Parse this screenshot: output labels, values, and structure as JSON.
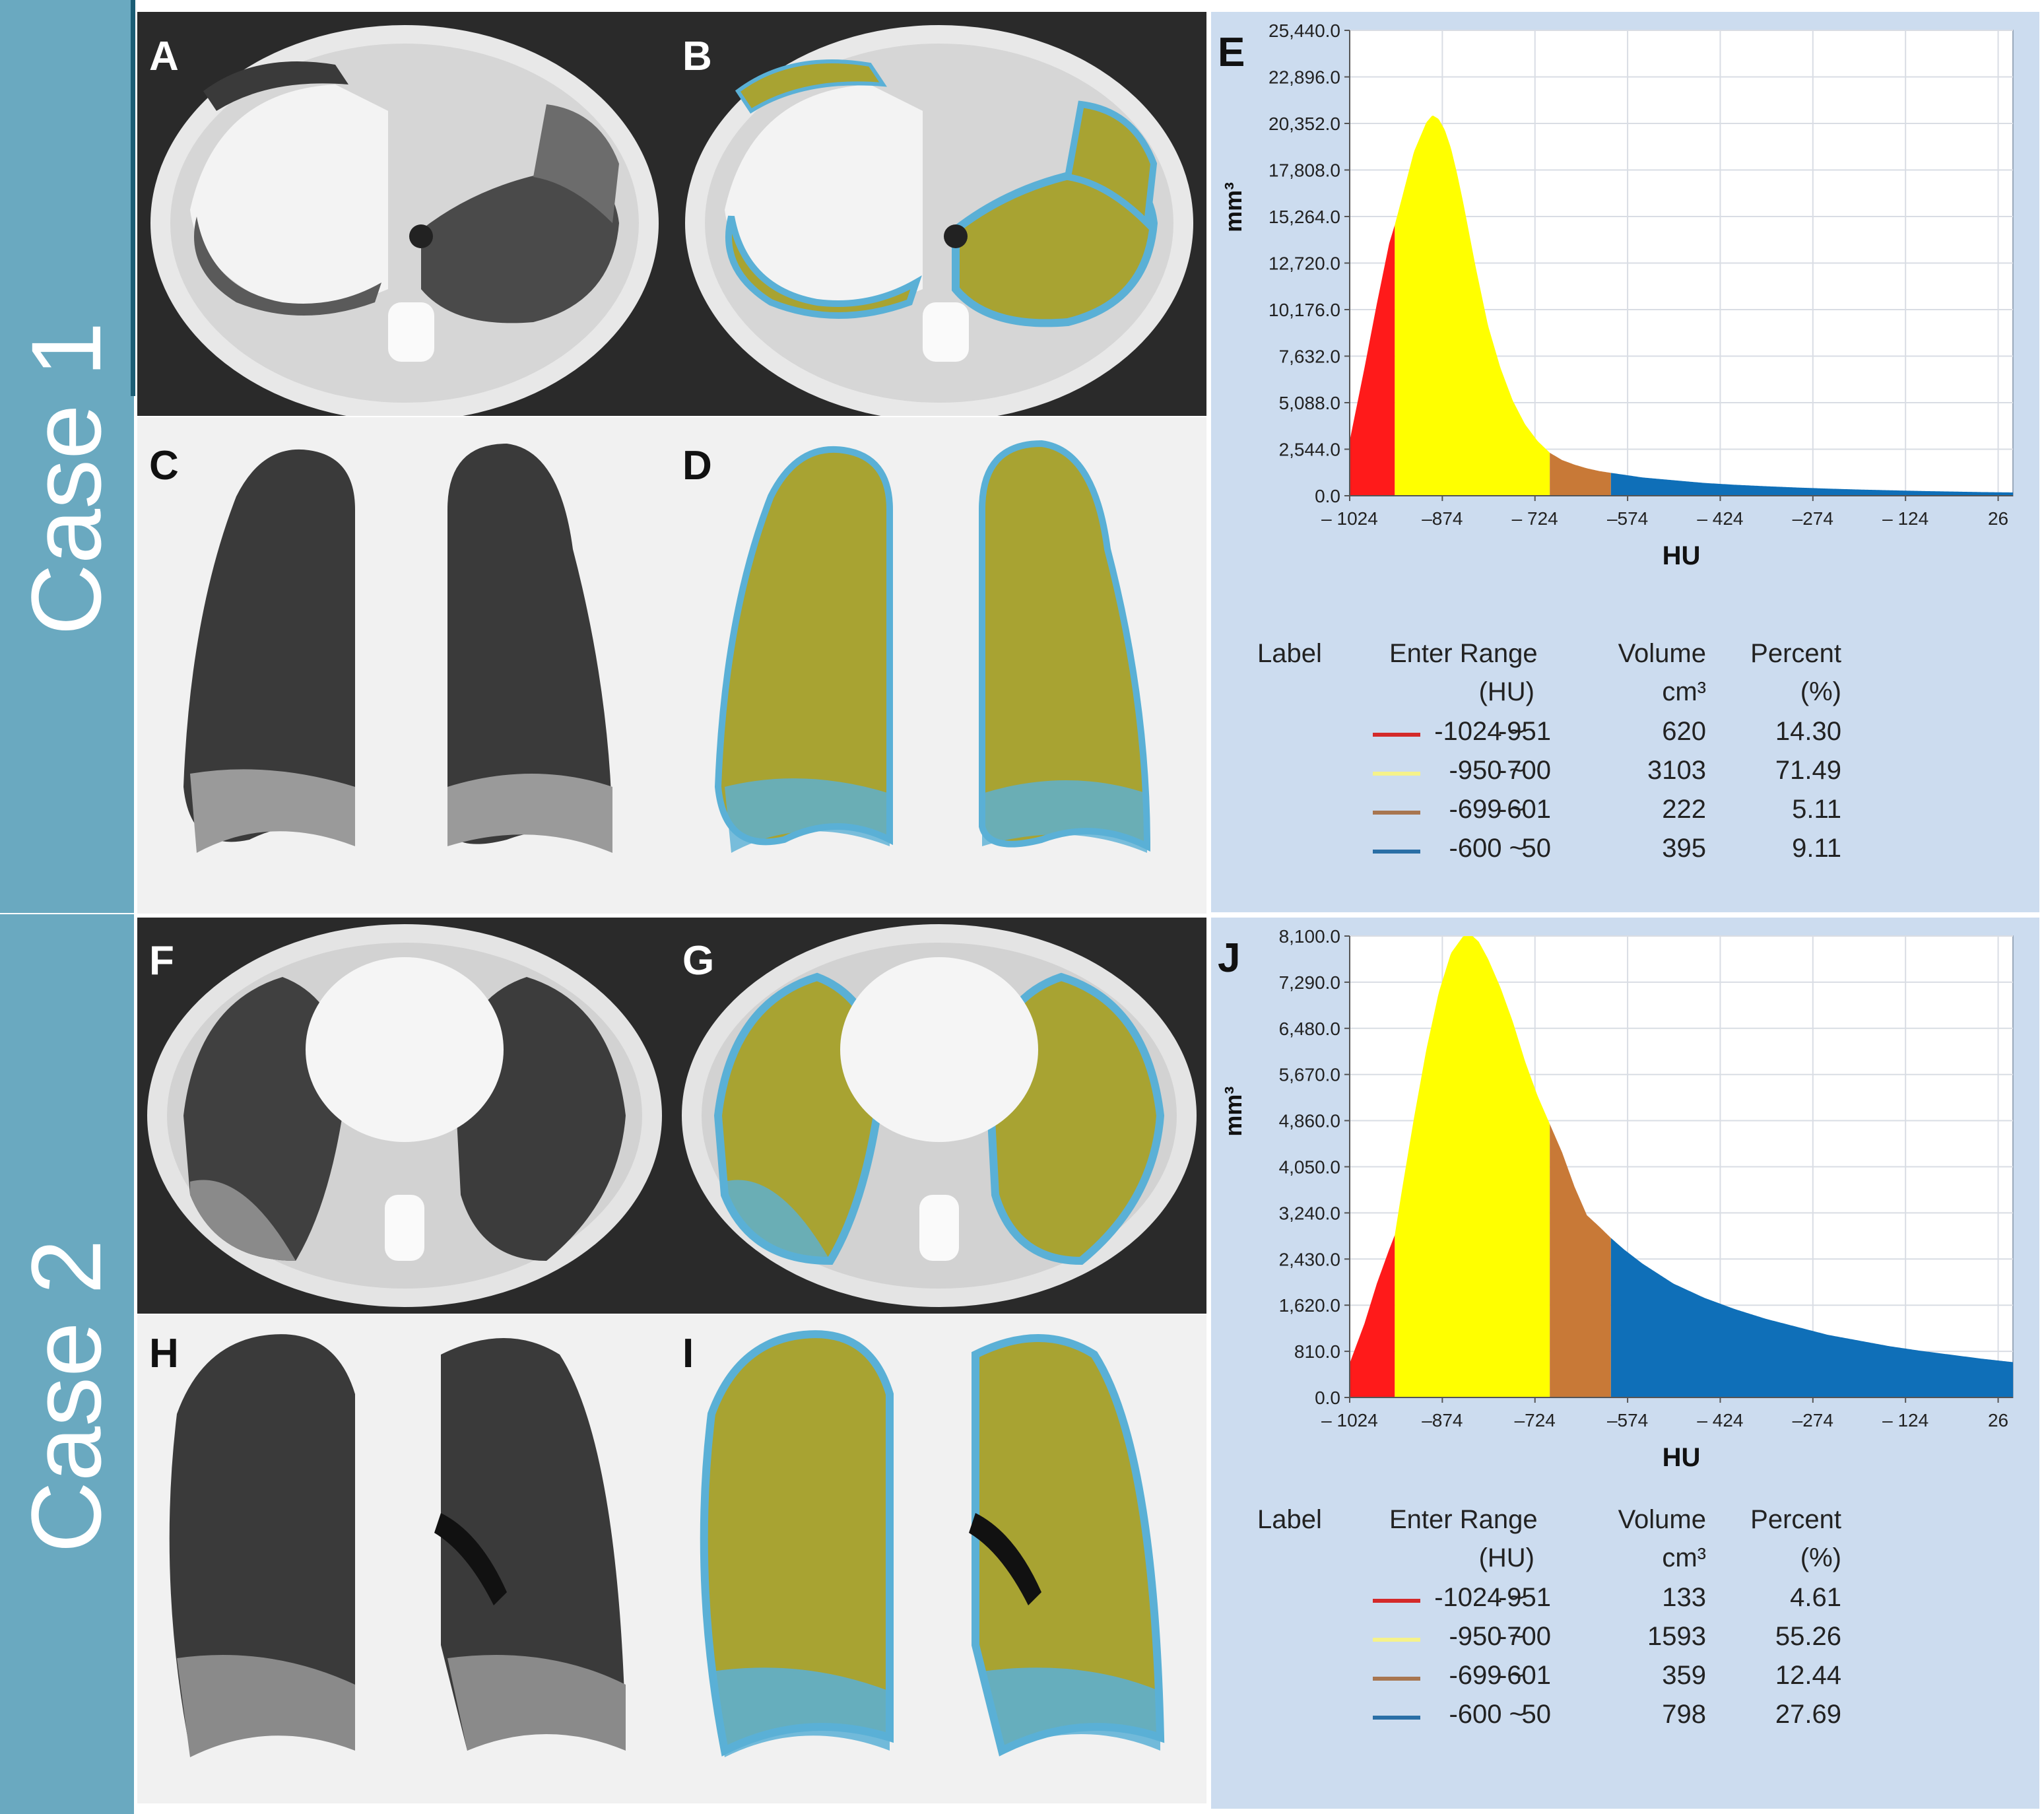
{
  "figure": {
    "case_labels": [
      "Case 1",
      "Case 2"
    ],
    "panel_letters": {
      "A": "A",
      "B": "B",
      "C": "C",
      "D": "D",
      "F": "F",
      "G": "G",
      "H": "H",
      "I": "I"
    }
  },
  "colors": {
    "band": "#6aa9c0",
    "red": "#ff1a1a",
    "yellow": "#ffff00",
    "brown": "#c87937",
    "blue": "#0f6fb8",
    "lung_overlay": "#a8a332",
    "overlay_blue": "#5ab0d6",
    "chart_bg": "#ffffff",
    "panel_bg": "#ccdcef"
  },
  "chart_data": [
    {
      "panel": "E",
      "type": "area",
      "title": "",
      "xlabel": "HU",
      "ylabel": "mm³",
      "xlim": [
        -1024,
        50
      ],
      "ylim": [
        0,
        25440
      ],
      "xticks": [
        -1024,
        -874,
        -724,
        -574,
        -424,
        -274,
        -124,
        26
      ],
      "xtick_labels": [
        "– 1024",
        "–874",
        "– 724",
        "–574",
        "– 424",
        "–274",
        "– 124",
        "26"
      ],
      "yticks": [
        0,
        2544,
        5088,
        7632,
        10176,
        12720,
        15264,
        17808,
        20352,
        22896,
        25440
      ],
      "ytick_labels": [
        "0.0",
        "2,544.0",
        "5,088.0",
        "7,632.0",
        "10,176.0",
        "12,720.0",
        "15,264.0",
        "17,808.0",
        "20,352.0",
        "22,896.0",
        "25,440.0"
      ],
      "curve": {
        "x": [
          -1024,
          -1000,
          -980,
          -960,
          -951,
          -940,
          -920,
          -900,
          -890,
          -880,
          -870,
          -860,
          -850,
          -840,
          -820,
          -800,
          -780,
          -760,
          -740,
          -720,
          -700,
          -680,
          -660,
          -640,
          -620,
          -601,
          -580,
          -550,
          -500,
          -450,
          -400,
          -350,
          -300,
          -250,
          -200,
          -150,
          -100,
          -50,
          0,
          50
        ],
        "y": [
          3000,
          7000,
          10500,
          13800,
          14800,
          16200,
          18800,
          20400,
          20800,
          20600,
          20000,
          19000,
          17600,
          16000,
          12500,
          9300,
          7000,
          5200,
          3900,
          3000,
          2350,
          1950,
          1700,
          1500,
          1350,
          1250,
          1150,
          1000,
          850,
          700,
          600,
          520,
          450,
          390,
          340,
          300,
          260,
          230,
          200,
          180
        ]
      },
      "ranges": [
        {
          "label": "-1024 ~ -951",
          "from": -1024,
          "to": -951,
          "color": "#ff1a1a"
        },
        {
          "label": "-950 ~ -700",
          "from": -951,
          "to": -700,
          "color": "#ffff00"
        },
        {
          "label": "-699 ~ -601",
          "from": -700,
          "to": -601,
          "color": "#c87937"
        },
        {
          "label": "-600 ~ 50",
          "from": -601,
          "to": 50,
          "color": "#0f6fb8"
        }
      ],
      "table": {
        "headers": {
          "label": "Label",
          "range": "Enter Range",
          "range_unit": "(HU)",
          "volume": "Volume",
          "volume_unit": "cm³",
          "percent": "Percent",
          "percent_unit": "(%)"
        },
        "rows": [
          {
            "r1": "-1024 ~",
            "r2": "-951",
            "volume": "620",
            "percent": "14.30",
            "color": "#d42a2a"
          },
          {
            "r1": "-950 ~",
            "r2": "-700",
            "volume": "3103",
            "percent": "71.49",
            "color": "#f5f28a"
          },
          {
            "r1": "-699 ~",
            "r2": "-601",
            "volume": "222",
            "percent": "5.11",
            "color": "#a87650"
          },
          {
            "r1": "-600 ~",
            "r2": "50",
            "volume": "395",
            "percent": "9.11",
            "color": "#2a6fa6"
          }
        ]
      }
    },
    {
      "panel": "J",
      "type": "area",
      "title": "",
      "xlabel": "HU",
      "ylabel": "mm³",
      "xlim": [
        -1024,
        50
      ],
      "ylim": [
        0,
        8100
      ],
      "xticks": [
        -1024,
        -874,
        -724,
        -574,
        -424,
        -274,
        -124,
        26
      ],
      "xtick_labels": [
        "– 1024",
        "–874",
        "–724",
        "–574",
        "– 424",
        "–274",
        "– 124",
        "26"
      ],
      "yticks": [
        0,
        810,
        1620,
        2430,
        3240,
        4050,
        4860,
        5670,
        6480,
        7290,
        8100
      ],
      "ytick_labels": [
        "0.0",
        "810.0",
        "1,620.0",
        "2,430.0",
        "3,240.0",
        "4,050.0",
        "4,860.0",
        "5,670.0",
        "6,480.0",
        "7,290.0",
        "8,100.0"
      ],
      "curve": {
        "x": [
          -1024,
          -1000,
          -980,
          -960,
          -951,
          -940,
          -920,
          -900,
          -880,
          -860,
          -840,
          -825,
          -815,
          -800,
          -780,
          -760,
          -740,
          -720,
          -700,
          -680,
          -660,
          -640,
          -620,
          -601,
          -580,
          -550,
          -500,
          -450,
          -400,
          -350,
          -300,
          -250,
          -200,
          -150,
          -100,
          -50,
          0,
          50
        ],
        "y": [
          600,
          1300,
          2000,
          2600,
          2850,
          3600,
          4900,
          6100,
          7100,
          7800,
          8100,
          8100,
          8000,
          7700,
          7200,
          6600,
          5900,
          5300,
          4800,
          4300,
          3700,
          3200,
          3000,
          2800,
          2600,
          2350,
          2000,
          1750,
          1550,
          1380,
          1240,
          1100,
          1000,
          900,
          820,
          750,
          680,
          620
        ]
      },
      "ranges": [
        {
          "label": "-1024 ~ -951",
          "from": -1024,
          "to": -951,
          "color": "#ff1a1a"
        },
        {
          "label": "-950 ~ -700",
          "from": -951,
          "to": -700,
          "color": "#ffff00"
        },
        {
          "label": "-699 ~ -601",
          "from": -700,
          "to": -601,
          "color": "#c87937"
        },
        {
          "label": "-600 ~ 50",
          "from": -601,
          "to": 50,
          "color": "#0f6fb8"
        }
      ],
      "table": {
        "headers": {
          "label": "Label",
          "range": "Enter Range",
          "range_unit": "(HU)",
          "volume": "Volume",
          "volume_unit": "cm³",
          "percent": "Percent",
          "percent_unit": "(%)"
        },
        "rows": [
          {
            "r1": "-1024 ~",
            "r2": "-951",
            "volume": "133",
            "percent": "4.61",
            "color": "#d42a2a"
          },
          {
            "r1": "-950 ~",
            "r2": "-700",
            "volume": "1593",
            "percent": "55.26",
            "color": "#f5f28a"
          },
          {
            "r1": "-699 ~",
            "r2": "-601",
            "volume": "359",
            "percent": "12.44",
            "color": "#a87650"
          },
          {
            "r1": "-600 ~",
            "r2": "50",
            "volume": "798",
            "percent": "27.69",
            "color": "#2a6fa6"
          }
        ]
      }
    }
  ]
}
